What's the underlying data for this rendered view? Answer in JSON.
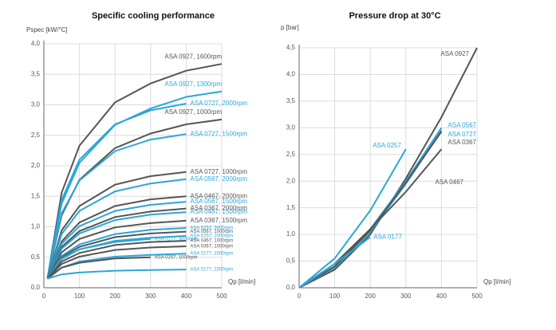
{
  "chart_data": [
    {
      "type": "line",
      "title": "Specific cooling performance",
      "y_label": "Pspec [kW/°C]",
      "x_label": "Qp [l/min]",
      "xlim": [
        0,
        500
      ],
      "ylim": [
        0,
        4.0
      ],
      "grid": true,
      "xticks": [
        0,
        100,
        200,
        300,
        400,
        500
      ],
      "yticks": [
        {
          "value": 0,
          "label": "0,0"
        },
        {
          "value": 0.5,
          "label": "0,5"
        },
        {
          "value": 1.0,
          "label": "1,0"
        },
        {
          "value": 1.5,
          "label": "1,5"
        },
        {
          "value": 2.0,
          "label": "2,0"
        },
        {
          "value": 2.5,
          "label": "2,5"
        },
        {
          "value": 3.0,
          "label": "3,0"
        },
        {
          "value": 3.5,
          "label": "3,5"
        },
        {
          "value": 4.0,
          "label": "4,0"
        }
      ],
      "series": [
        {
          "name": "ASA 0927, 1600rpm",
          "color": "#555555",
          "x": [
            10,
            50,
            100,
            200,
            300,
            400,
            500
          ],
          "values": [
            0.15,
            1.56,
            2.33,
            3.04,
            3.35,
            3.56,
            3.67
          ]
        },
        {
          "name": "ASA 0927, 1300rpm",
          "color": "#2aa6d8",
          "x": [
            10,
            50,
            100,
            200,
            300,
            400,
            500
          ],
          "values": [
            0.15,
            1.38,
            2.05,
            2.67,
            2.94,
            3.13,
            3.22
          ]
        },
        {
          "name": "ASA 0727, 2000rpm",
          "color": "#2aa6d8",
          "x": [
            10,
            50,
            100,
            200,
            300,
            400
          ],
          "values": [
            0.15,
            1.44,
            2.1,
            2.68,
            2.91,
            3.02
          ]
        },
        {
          "name": "ASA 0927, 1000rpm",
          "color": "#555555",
          "x": [
            10,
            50,
            100,
            200,
            300,
            400,
            500
          ],
          "values": [
            0.15,
            1.19,
            1.77,
            2.29,
            2.53,
            2.68,
            2.76
          ]
        },
        {
          "name": "ASA 0727, 1500rpm",
          "color": "#2aa6d8",
          "x": [
            10,
            50,
            100,
            200,
            300,
            400
          ],
          "values": [
            0.15,
            1.22,
            1.76,
            2.24,
            2.43,
            2.52
          ]
        },
        {
          "name": "ASA 0727, 1000rpm",
          "color": "#555555",
          "x": [
            10,
            50,
            100,
            200,
            300,
            400
          ],
          "values": [
            0.15,
            0.94,
            1.34,
            1.69,
            1.83,
            1.9
          ]
        },
        {
          "name": "ASA 0567, 2000rpm",
          "color": "#2aa6d8",
          "x": [
            10,
            50,
            100,
            200,
            300,
            400
          ],
          "values": [
            0.15,
            0.88,
            1.26,
            1.58,
            1.71,
            1.78
          ]
        },
        {
          "name": "ASA 0467, 2000rpm",
          "color": "#555555",
          "x": [
            10,
            50,
            100,
            200,
            300,
            400
          ],
          "values": [
            0.15,
            0.76,
            1.07,
            1.34,
            1.45,
            1.5
          ]
        },
        {
          "name": "ASA 0567, 1500rpm",
          "color": "#2aa6d8",
          "x": [
            10,
            50,
            100,
            200,
            300,
            400
          ],
          "values": [
            0.15,
            0.72,
            1.01,
            1.26,
            1.36,
            1.41
          ]
        },
        {
          "name": "ASA 0367, 2000rpm",
          "color": "#555555",
          "x": [
            10,
            50,
            100,
            200,
            300,
            400
          ],
          "values": [
            0.15,
            0.67,
            0.93,
            1.16,
            1.25,
            1.3
          ]
        },
        {
          "name": "ASA 0467, 1500rpm",
          "color": "#2aa6d8",
          "x": [
            10,
            50,
            100,
            200,
            300,
            400
          ],
          "values": [
            0.15,
            0.64,
            0.89,
            1.11,
            1.2,
            1.24
          ]
        },
        {
          "name": "ASA 0367, 1500rpm",
          "color": "#555555",
          "x": [
            10,
            50,
            100,
            200,
            300,
            400
          ],
          "values": [
            0.15,
            0.58,
            0.8,
            0.99,
            1.06,
            1.1
          ]
        },
        {
          "name": "ASA 0257, 3000rpm",
          "color": "#2aa6d8",
          "x": [
            10,
            50,
            100,
            200,
            300,
            400
          ],
          "values": [
            0.15,
            0.52,
            0.71,
            0.88,
            0.95,
            0.98
          ]
        },
        {
          "name": "ASA 0567, 1000rpm",
          "color": "#555555",
          "x": [
            10,
            50,
            100,
            200,
            300,
            400
          ],
          "values": [
            0.15,
            0.5,
            0.67,
            0.83,
            0.89,
            0.92
          ]
        },
        {
          "name": "ASA 0257, 2000rpm",
          "color": "#2aa6d8",
          "x": [
            10,
            50,
            100,
            200,
            300,
            400
          ],
          "values": [
            0.15,
            0.47,
            0.63,
            0.77,
            0.82,
            0.85
          ]
        },
        {
          "name": "ASA 0177, 3000rpm",
          "color": "#2aa6d8",
          "x": [
            10,
            50,
            100,
            200,
            300
          ],
          "values": [
            0.15,
            0.48,
            0.63,
            0.75,
            0.8
          ]
        },
        {
          "name": "ASA 0467, 1000rpm",
          "color": "#555555",
          "x": [
            10,
            50,
            100,
            200,
            300,
            400
          ],
          "values": [
            0.15,
            0.43,
            0.57,
            0.7,
            0.75,
            0.77
          ]
        },
        {
          "name": "ASA 0367, 1000rpm",
          "color": "#555555",
          "x": [
            10,
            50,
            100,
            200,
            300,
            400
          ],
          "values": [
            0.15,
            0.39,
            0.51,
            0.62,
            0.66,
            0.68
          ]
        },
        {
          "name": "ASA 0177, 2000rpm",
          "color": "#2aa6d8",
          "x": [
            10,
            50,
            100,
            200,
            300,
            400
          ],
          "values": [
            0.15,
            0.33,
            0.43,
            0.51,
            0.54,
            0.56
          ]
        },
        {
          "name": "ASA 0257, 1000rpm",
          "color": "#555555",
          "x": [
            10,
            50,
            100,
            200,
            300
          ],
          "values": [
            0.15,
            0.33,
            0.41,
            0.48,
            0.5
          ]
        },
        {
          "name": "ASA 0177, 1000rpm",
          "color": "#2aa6d8",
          "x": [
            10,
            50,
            100,
            200,
            300,
            400
          ],
          "values": [
            0.15,
            0.22,
            0.25,
            0.28,
            0.29,
            0.3
          ]
        }
      ]
    },
    {
      "type": "line",
      "title": "Pressure drop at 30°C",
      "y_label": "p [bar]",
      "x_label": "Qp [l/min]",
      "xlim": [
        0,
        500
      ],
      "ylim": [
        0,
        4.5
      ],
      "grid": true,
      "xticks": [
        0,
        100,
        200,
        300,
        400,
        500
      ],
      "yticks": [
        {
          "value": 0,
          "label": "0,0"
        },
        {
          "value": 0.5,
          "label": "0,5"
        },
        {
          "value": 1.0,
          "label": "1,0"
        },
        {
          "value": 1.5,
          "label": "1,5"
        },
        {
          "value": 2.0,
          "label": "2,0"
        },
        {
          "value": 2.5,
          "label": "2,5"
        },
        {
          "value": 3.0,
          "label": "3,0"
        },
        {
          "value": 3.5,
          "label": "3,5"
        },
        {
          "value": 4.0,
          "label": "4,0"
        },
        {
          "value": 4.5,
          "label": "4,5"
        }
      ],
      "series": [
        {
          "name": "ASA 0927",
          "color": "#555555",
          "x": [
            0,
            100,
            200,
            300,
            400,
            500
          ],
          "values": [
            0,
            0.34,
            1.0,
            2.05,
            3.2,
            4.5
          ]
        },
        {
          "name": "ASA 0567",
          "color": "#2aa6d8",
          "x": [
            0,
            100,
            200,
            300,
            400
          ],
          "values": [
            0,
            0.4,
            1.1,
            2.0,
            3.0
          ]
        },
        {
          "name": "ASA 0727",
          "color": "#2aa6d8",
          "x": [
            0,
            100,
            200,
            300,
            400
          ],
          "values": [
            0,
            0.38,
            1.05,
            1.95,
            2.95
          ]
        },
        {
          "name": "ASA 0367",
          "color": "#555555",
          "x": [
            0,
            100,
            200,
            300,
            400
          ],
          "values": [
            0,
            0.4,
            1.08,
            1.97,
            2.93
          ]
        },
        {
          "name": "ASA 0467",
          "color": "#555555",
          "x": [
            0,
            100,
            200,
            300,
            400
          ],
          "values": [
            0,
            0.45,
            1.1,
            1.8,
            2.6
          ]
        },
        {
          "name": "ASA 0257",
          "color": "#2aa6d8",
          "x": [
            0,
            100,
            200,
            300
          ],
          "values": [
            0,
            0.55,
            1.45,
            2.6
          ]
        },
        {
          "name": "ASA 0177",
          "color": "#2aa6d8",
          "x": [
            0,
            100,
            200
          ],
          "values": [
            0,
            0.45,
            0.95
          ]
        }
      ]
    }
  ]
}
